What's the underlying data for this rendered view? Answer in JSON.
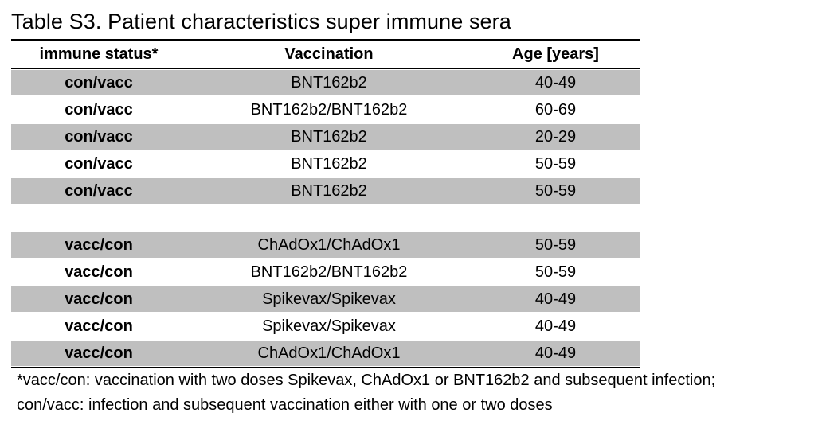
{
  "title": "Table S3. Patient characteristics super immune sera",
  "headers": {
    "immune_status": "immune status*",
    "vaccination": "Vaccination",
    "age": "Age [years]"
  },
  "group1": [
    {
      "status": "con/vacc",
      "vaccination": "BNT162b2",
      "age": "40-49"
    },
    {
      "status": "con/vacc",
      "vaccination": "BNT162b2/BNT162b2",
      "age": "60-69"
    },
    {
      "status": "con/vacc",
      "vaccination": "BNT162b2",
      "age": "20-29"
    },
    {
      "status": "con/vacc",
      "vaccination": "BNT162b2",
      "age": "50-59"
    },
    {
      "status": "con/vacc",
      "vaccination": "BNT162b2",
      "age": "50-59"
    }
  ],
  "group2": [
    {
      "status": "vacc/con",
      "vaccination": "ChAdOx1/ChAdOx1",
      "age": "50-59"
    },
    {
      "status": "vacc/con",
      "vaccination": "BNT162b2/BNT162b2",
      "age": "50-59"
    },
    {
      "status": "vacc/con",
      "vaccination": "Spikevax/Spikevax",
      "age": "40-49"
    },
    {
      "status": "vacc/con",
      "vaccination": "Spikevax/Spikevax",
      "age": "40-49"
    },
    {
      "status": "vacc/con",
      "vaccination": "ChAdOx1/ChAdOx1",
      "age": "40-49"
    }
  ],
  "footnote": {
    "line1": "*vacc/con: vaccination with two doses Spikevax, ChAdOx1 or BNT162b2 and subsequent infection;",
    "line2": "con/vacc: infection and subsequent vaccination either with one or two doses"
  },
  "colors": {
    "shaded_row": "#bfbfbf",
    "rule": "#000000"
  }
}
